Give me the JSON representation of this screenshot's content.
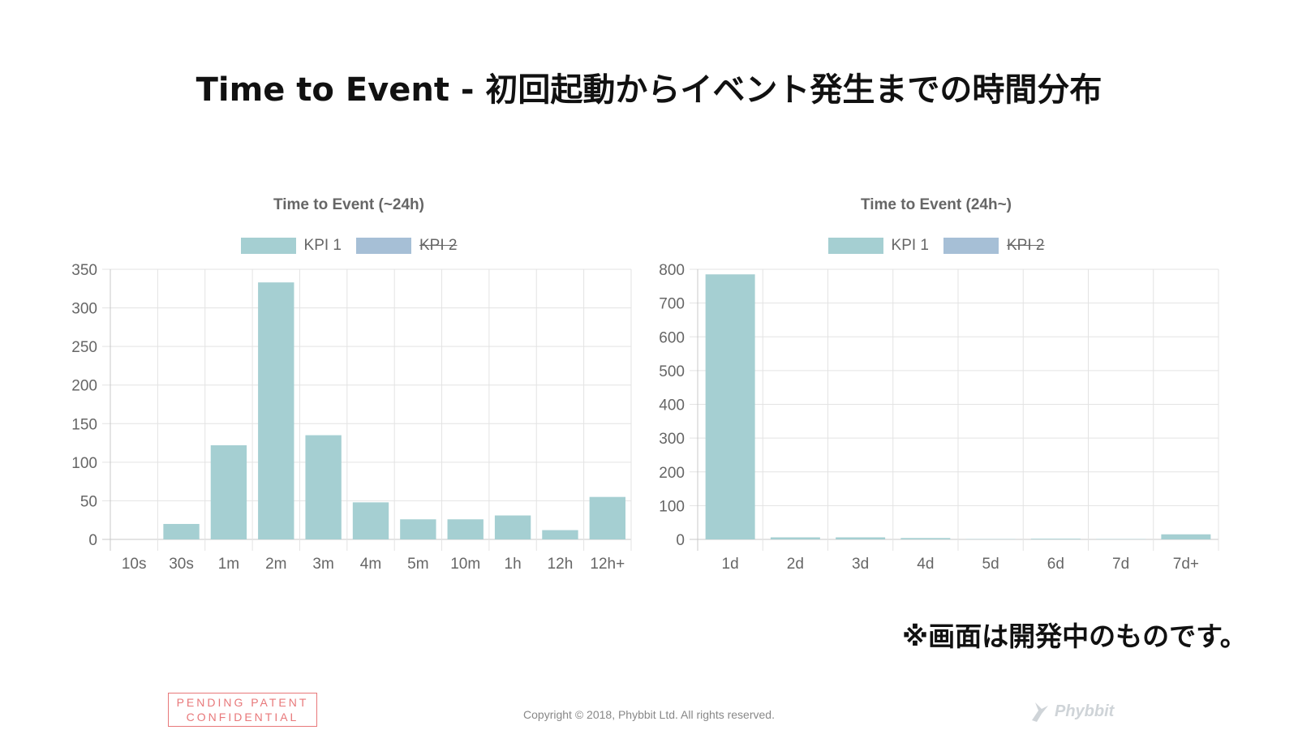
{
  "slide": {
    "title": "Time to Event  - 初回起動からイベント発生までの時間分布",
    "note": "※画面は開発中のものです。",
    "stamp_line1": "PENDING PATENT",
    "stamp_line2": "CONFIDENTIAL",
    "copyright": "Copyright © 2018, Phybbit Ltd. All rights reserved.",
    "logo_text": "Phybbit",
    "logo_icon": "bird-icon"
  },
  "colors": {
    "kpi1": "#a5cfd2",
    "kpi2": "#a6bfd6",
    "grid": "#e3e3e3",
    "axis": "#c8c8c8"
  },
  "chart_data": [
    {
      "type": "bar",
      "title": "Time to Event (~24h)",
      "legend": [
        "KPI 1",
        "KPI 2"
      ],
      "legend_hidden": [
        false,
        true
      ],
      "legend_position": "top",
      "categories": [
        "10s",
        "30s",
        "1m",
        "2m",
        "3m",
        "4m",
        "5m",
        "10m",
        "1h",
        "12h",
        "12h+"
      ],
      "series": [
        {
          "name": "KPI 1",
          "values": [
            0,
            20,
            122,
            333,
            135,
            48,
            26,
            26,
            31,
            12,
            55
          ]
        }
      ],
      "ylim": [
        0,
        350
      ],
      "yticks": [
        0,
        50,
        100,
        150,
        200,
        250,
        300,
        350
      ],
      "grid": true
    },
    {
      "type": "bar",
      "title": "Time to Event (24h~)",
      "legend": [
        "KPI 1",
        "KPI 2"
      ],
      "legend_hidden": [
        false,
        true
      ],
      "legend_position": "top",
      "categories": [
        "1d",
        "2d",
        "3d",
        "4d",
        "5d",
        "6d",
        "7d",
        "7d+"
      ],
      "series": [
        {
          "name": "KPI 1",
          "values": [
            785,
            6,
            6,
            4,
            1,
            2,
            1,
            15
          ]
        }
      ],
      "ylim": [
        0,
        800
      ],
      "yticks": [
        0,
        100,
        200,
        300,
        400,
        500,
        600,
        700,
        800
      ],
      "grid": true
    }
  ]
}
